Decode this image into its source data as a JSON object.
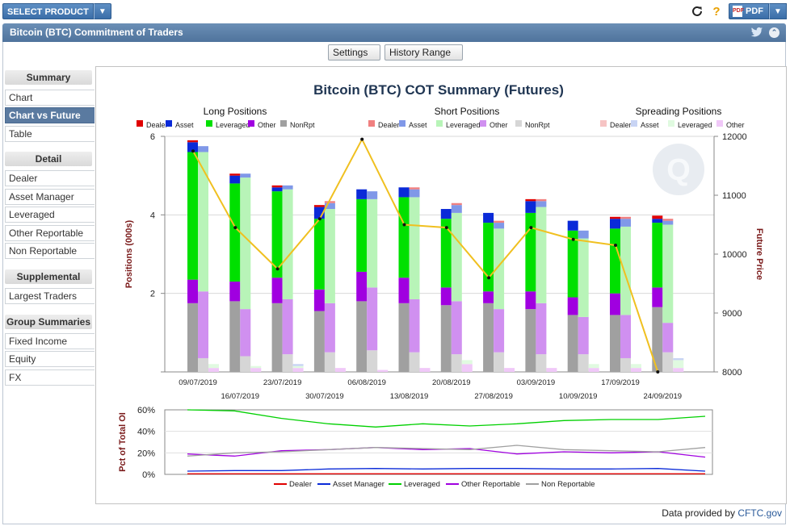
{
  "topbar": {
    "select_product": "SELECT PRODUCT",
    "pdf_label": "PDF",
    "refresh_icon": "refresh-icon",
    "help_icon": "help-icon"
  },
  "title": "Bitcoin (BTC) Commitment of Traders",
  "toolbar": {
    "settings": "Settings",
    "history_range": "History Range"
  },
  "sidebar": {
    "summary": {
      "header": "Summary",
      "items": [
        "Chart",
        "Chart vs Future",
        "Table"
      ]
    },
    "detail": {
      "header": "Detail",
      "items": [
        "Dealer",
        "Asset Manager",
        "Leveraged",
        "Other Reportable",
        "Non Reportable"
      ]
    },
    "supplemental": {
      "header": "Supplemental",
      "items": [
        "Largest Traders"
      ]
    },
    "group": {
      "header": "Group Summaries",
      "items": [
        "Fixed Income",
        "Equity",
        "FX"
      ]
    },
    "active_item": "Chart vs Future"
  },
  "footer": {
    "prefix": "Data provided by ",
    "link": "CFTC.gov"
  },
  "chart_data": [
    {
      "type": "bar",
      "title": "Bitcoin (BTC) COT Summary (Futures)",
      "ylabel": "Positions (000s)",
      "y2label": "Future Price",
      "ylim": [
        0,
        6
      ],
      "y2lim": [
        8000,
        12000
      ],
      "yticks": [
        "2",
        "4",
        "6"
      ],
      "y2ticks": [
        "8000",
        "9000",
        "10000",
        "11000",
        "12000"
      ],
      "categories": [
        "09/07/2019",
        "16/07/2019",
        "23/07/2019",
        "30/07/2019",
        "06/08/2019",
        "13/08/2019",
        "20/08/2019",
        "27/08/2019",
        "03/09/2019",
        "10/09/2019",
        "17/09/2019",
        "24/09/2019"
      ],
      "group_titles": [
        "Long Positions",
        "Short Positions",
        "Spreading Positions"
      ],
      "legend": {
        "long": [
          "Dealer",
          "Asset",
          "Leveraged",
          "Other",
          "NonRpt"
        ],
        "short": [
          "Dealer",
          "Asset",
          "Leveraged",
          "Other",
          "NonRpt"
        ],
        "spreading": [
          "Dealer",
          "Asset",
          "Leveraged",
          "Other"
        ]
      },
      "colors": {
        "long": [
          "#e00000",
          "#0a2ad8",
          "#00e000",
          "#a000e0",
          "#a0a0a0"
        ],
        "short": [
          "#f08080",
          "#8098e8",
          "#b8f4b8",
          "#d090f0",
          "#d6d6d6"
        ],
        "spreading": [
          "#f6c4c4",
          "#c8d4f4",
          "#e0fae0",
          "#f0c8f8"
        ]
      },
      "long": {
        "dealer": [
          0.05,
          0.05,
          0.05,
          0.05,
          0.0,
          0.0,
          0.0,
          0.0,
          0.05,
          0.0,
          0.05,
          0.08
        ],
        "asset": [
          0.25,
          0.2,
          0.1,
          0.3,
          0.25,
          0.25,
          0.25,
          0.25,
          0.3,
          0.25,
          0.25,
          0.1
        ],
        "leveraged": [
          3.25,
          2.5,
          2.2,
          1.8,
          1.85,
          2.05,
          1.75,
          1.75,
          2.0,
          1.7,
          1.65,
          1.65
        ],
        "other": [
          0.6,
          0.5,
          0.65,
          0.55,
          0.75,
          0.65,
          0.45,
          0.3,
          0.45,
          0.45,
          0.55,
          0.5
        ],
        "nonrpt": [
          1.75,
          1.8,
          1.75,
          1.55,
          1.8,
          1.75,
          1.7,
          1.75,
          1.6,
          1.45,
          1.45,
          1.65
        ]
      },
      "short": {
        "dealer": [
          0.0,
          0.0,
          0.0,
          0.05,
          0.0,
          0.05,
          0.05,
          0.05,
          0.05,
          0.0,
          0.05,
          0.05
        ],
        "asset": [
          0.15,
          0.1,
          0.1,
          0.15,
          0.2,
          0.2,
          0.2,
          0.15,
          0.15,
          0.2,
          0.2,
          0.1
        ],
        "leveraged": [
          3.55,
          3.35,
          2.8,
          2.4,
          2.25,
          2.6,
          2.25,
          2.05,
          2.45,
          2.0,
          2.25,
          2.5
        ],
        "other": [
          1.7,
          1.2,
          1.4,
          1.25,
          1.6,
          1.35,
          1.35,
          1.1,
          1.3,
          0.95,
          1.1,
          0.75
        ],
        "nonrpt": [
          0.35,
          0.4,
          0.45,
          0.5,
          0.55,
          0.5,
          0.45,
          0.5,
          0.45,
          0.45,
          0.35,
          0.5
        ]
      },
      "spreading": {
        "dealer": [
          0.0,
          0.0,
          0.0,
          0.0,
          0.0,
          0.0,
          0.0,
          0.0,
          0.0,
          0.0,
          0.0,
          0.0
        ],
        "asset": [
          0.0,
          0.0,
          0.05,
          0.0,
          0.0,
          0.0,
          0.0,
          0.0,
          0.0,
          0.0,
          0.0,
          0.05
        ],
        "leveraged": [
          0.1,
          0.05,
          0.05,
          0.0,
          0.0,
          0.0,
          0.1,
          0.0,
          0.0,
          0.1,
          0.1,
          0.2
        ],
        "other": [
          0.1,
          0.1,
          0.1,
          0.1,
          0.05,
          0.1,
          0.2,
          0.1,
          0.1,
          0.1,
          0.1,
          0.1
        ]
      },
      "future_price": [
        11750,
        10450,
        9750,
        10600,
        11950,
        10500,
        10450,
        9600,
        10450,
        10250,
        10150,
        8000
      ]
    },
    {
      "type": "line",
      "ylabel": "Pct of Total OI",
      "ylim": [
        0,
        60
      ],
      "yticks": [
        "0%",
        "20%",
        "40%",
        "60%"
      ],
      "series": [
        {
          "name": "Dealer",
          "color": "#e00000",
          "values": [
            0.5,
            0.5,
            0.5,
            0.5,
            0.5,
            0.5,
            0.5,
            0.5,
            0.5,
            0.5,
            0.5,
            0.5
          ]
        },
        {
          "name": "Asset Manager",
          "color": "#0a2ad8",
          "values": [
            3,
            3.5,
            3.5,
            5,
            5.5,
            5,
            5.5,
            5.5,
            5,
            5,
            5.5,
            3
          ]
        },
        {
          "name": "Leveraged",
          "color": "#00d000",
          "values": [
            60,
            59,
            52,
            47,
            44,
            47,
            45,
            47,
            50,
            51,
            51,
            54
          ]
        },
        {
          "name": "Other Reportable",
          "color": "#a000e0",
          "values": [
            19,
            17,
            22,
            23,
            25,
            23,
            24,
            19,
            21,
            20,
            21,
            16
          ]
        },
        {
          "name": "Non Reportable",
          "color": "#a0a0a0",
          "values": [
            17,
            20,
            21,
            23,
            25,
            24,
            23,
            27,
            23,
            22,
            21,
            25
          ]
        }
      ]
    }
  ]
}
